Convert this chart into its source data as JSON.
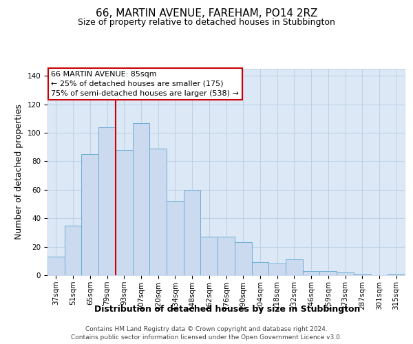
{
  "title": "66, MARTIN AVENUE, FAREHAM, PO14 2RZ",
  "subtitle": "Size of property relative to detached houses in Stubbington",
  "xlabel": "Distribution of detached houses by size in Stubbington",
  "ylabel": "Number of detached properties",
  "bar_labels": [
    "37sqm",
    "51sqm",
    "65sqm",
    "79sqm",
    "93sqm",
    "107sqm",
    "120sqm",
    "134sqm",
    "148sqm",
    "162sqm",
    "176sqm",
    "190sqm",
    "204sqm",
    "218sqm",
    "232sqm",
    "246sqm",
    "259sqm",
    "273sqm",
    "287sqm",
    "301sqm",
    "315sqm"
  ],
  "bar_values": [
    13,
    35,
    85,
    104,
    88,
    107,
    89,
    52,
    60,
    27,
    27,
    23,
    9,
    8,
    11,
    3,
    3,
    2,
    1,
    0,
    1
  ],
  "bar_color": "#ccdaf0",
  "bar_edge_color": "#6baed6",
  "ylim": [
    0,
    145
  ],
  "yticks": [
    0,
    20,
    40,
    60,
    80,
    100,
    120,
    140
  ],
  "vline_x": 3.5,
  "vline_color": "#cc0000",
  "annotation_title": "66 MARTIN AVENUE: 85sqm",
  "annotation_line1": "← 25% of detached houses are smaller (175)",
  "annotation_line2": "75% of semi-detached houses are larger (538) →",
  "annotation_box_color": "#ffffff",
  "annotation_box_edge": "#cc0000",
  "footer1": "Contains HM Land Registry data © Crown copyright and database right 2024.",
  "footer2": "Contains public sector information licensed under the Open Government Licence v3.0.",
  "plot_bg_color": "#dce8f5",
  "fig_bg_color": "#ffffff",
  "grid_color": "#b8cce4",
  "title_fontsize": 11,
  "subtitle_fontsize": 9,
  "axis_label_fontsize": 9,
  "tick_fontsize": 7.5,
  "annot_fontsize": 8,
  "footer_fontsize": 6.5
}
